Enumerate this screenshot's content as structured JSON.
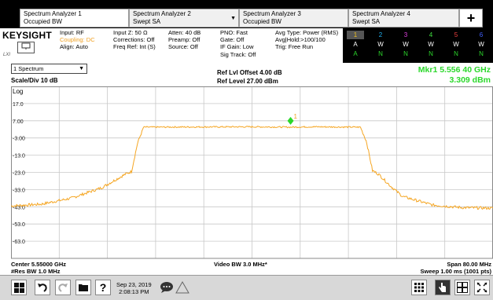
{
  "tabs": [
    {
      "line1": "Spectrum Analyzer 1",
      "line2": "Occupied BW"
    },
    {
      "line1": "Spectrum Analyzer 2",
      "line2": "Swept SA"
    },
    {
      "line1": "Spectrum Analyzer 3",
      "line2": "Occupied BW"
    },
    {
      "line1": "Spectrum Analyzer 4",
      "line2": "Swept SA"
    }
  ],
  "add_tab_label": "+",
  "logo": {
    "text": "KEYSIGHT",
    "sub": "LXI"
  },
  "info": {
    "col1": [
      "Input: RF",
      "Coupling: DC",
      "Align: Auto"
    ],
    "col2": [
      "Input Z: 50 Ω",
      "Corrections: Off",
      "Freq Ref: Int (S)"
    ],
    "col3": [
      "Atten: 40 dB",
      "Preamp: Off",
      "Source: Off"
    ],
    "col4": [
      "PNO: Fast",
      "Gate: Off",
      "IF Gain: Low",
      "Sig Track: Off"
    ],
    "col5": [
      "Avg Type: Power (RMS)",
      "Avg|Hold:>100/100",
      "Trig: Free Run"
    ]
  },
  "traces": {
    "numbers": [
      "1",
      "2",
      "3",
      "4",
      "5",
      "6"
    ],
    "colors": [
      "#f0c020",
      "#20b0f0",
      "#e040e0",
      "#40e040",
      "#f04040",
      "#4060ff"
    ],
    "row2": [
      "A",
      "W",
      "W",
      "W",
      "W",
      "W"
    ],
    "row3": [
      "A",
      "N",
      "N",
      "N",
      "N",
      "N"
    ]
  },
  "spectrum_select": "1 Spectrum",
  "scale_label": "Scale/Div 10 dB",
  "log_label": "Log",
  "ref_offset": "Ref Lvl Offset 4.00 dB",
  "ref_level": "Ref Level 27.00 dBm",
  "marker": {
    "line1": "Mkr1  5.556 40 GHz",
    "line2": "3.309 dBm",
    "label": "1",
    "color": "#2bd82b"
  },
  "y_ticks": [
    "17.0",
    "7.00",
    "-3.00",
    "-13.0",
    "-23.0",
    "-33.0",
    "-43.0",
    "-53.0",
    "-63.0"
  ],
  "trace_color": "#f5a623",
  "bottom": {
    "center": "Center 5.55000 GHz",
    "res_bw": "#Res BW 1.0 MHz",
    "video_bw": "Video BW 3.0 MHz*",
    "span": "Span 80.00 MHz",
    "sweep": "Sweep 1.00 ms (1001 pts)"
  },
  "clock": {
    "date": "Sep 23, 2019",
    "time": "2:08:13 PM"
  },
  "chart_data": {
    "type": "line",
    "ylim": [
      -73,
      27
    ],
    "xlim": [
      5510,
      5590
    ],
    "x_unit": "MHz",
    "y_unit": "dBm",
    "series": [
      {
        "x": [
          5510,
          5515,
          5520,
          5525,
          5527,
          5529,
          5530,
          5531,
          5532,
          5540,
          5550,
          5556.4,
          5560,
          5568,
          5569,
          5570,
          5571,
          5573,
          5575,
          5580,
          5585,
          5590
        ],
        "values": [
          -42.5,
          -41.5,
          -38,
          -32,
          -28,
          -24,
          -22.5,
          -6,
          3.3,
          3.4,
          3.5,
          3.3,
          3.5,
          3.3,
          -5,
          -22,
          -24,
          -31,
          -37,
          -42,
          -43.5,
          -43.8
        ]
      }
    ],
    "marker": {
      "x": 5556.4,
      "y": 3.309
    }
  }
}
